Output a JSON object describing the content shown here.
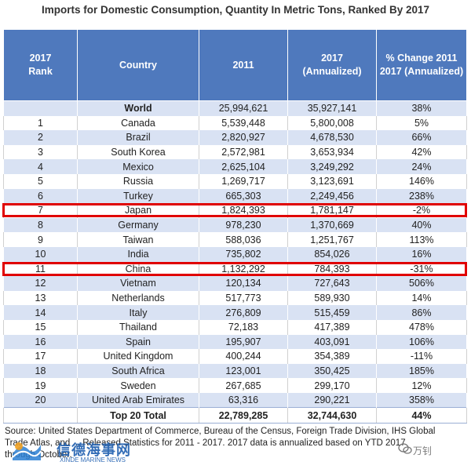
{
  "title": "Imports for Domestic Consumption, Quantity In Metric Tons, Ranked By 2017",
  "headers": {
    "rank": "2017\nRank",
    "country": "Country",
    "y2011": "2011",
    "y2017": "2017\n(Annualized)",
    "change": "% Change 2011\n2017 (Annualized)"
  },
  "world": {
    "rank": "",
    "country": "World",
    "y2011": "25,994,621",
    "y2017": "35,927,141",
    "change": "38%"
  },
  "rows": [
    {
      "rank": "1",
      "country": "Canada",
      "y2011": "5,539,448",
      "y2017": "5,800,008",
      "change": "5%"
    },
    {
      "rank": "2",
      "country": "Brazil",
      "y2011": "2,820,927",
      "y2017": "4,678,530",
      "change": "66%"
    },
    {
      "rank": "3",
      "country": "South Korea",
      "y2011": "2,572,981",
      "y2017": "3,653,934",
      "change": "42%"
    },
    {
      "rank": "4",
      "country": "Mexico",
      "y2011": "2,625,104",
      "y2017": "3,249,292",
      "change": "24%"
    },
    {
      "rank": "5",
      "country": "Russia",
      "y2011": "1,269,717",
      "y2017": "3,123,691",
      "change": "146%"
    },
    {
      "rank": "6",
      "country": "Turkey",
      "y2011": "665,303",
      "y2017": "2,249,456",
      "change": "238%"
    },
    {
      "rank": "7",
      "country": "Japan",
      "y2011": "1,824,393",
      "y2017": "1,781,147",
      "change": "-2%"
    },
    {
      "rank": "8",
      "country": "Germany",
      "y2011": "978,230",
      "y2017": "1,370,669",
      "change": "40%"
    },
    {
      "rank": "9",
      "country": "Taiwan",
      "y2011": "588,036",
      "y2017": "1,251,767",
      "change": "113%"
    },
    {
      "rank": "10",
      "country": "India",
      "y2011": "735,802",
      "y2017": "854,026",
      "change": "16%"
    },
    {
      "rank": "11",
      "country": "China",
      "y2011": "1,132,292",
      "y2017": "784,393",
      "change": "-31%"
    },
    {
      "rank": "12",
      "country": "Vietnam",
      "y2011": "120,134",
      "y2017": "727,643",
      "change": "506%"
    },
    {
      "rank": "13",
      "country": "Netherlands",
      "y2011": "517,773",
      "y2017": "589,930",
      "change": "14%"
    },
    {
      "rank": "14",
      "country": "Italy",
      "y2011": "276,809",
      "y2017": "515,459",
      "change": "86%"
    },
    {
      "rank": "15",
      "country": "Thailand",
      "y2011": "72,183",
      "y2017": "417,389",
      "change": "478%"
    },
    {
      "rank": "16",
      "country": "Spain",
      "y2011": "195,907",
      "y2017": "403,091",
      "change": "106%"
    },
    {
      "rank": "17",
      "country": "United Kingdom",
      "y2011": "400,244",
      "y2017": "354,389",
      "change": "-11%"
    },
    {
      "rank": "18",
      "country": "South Africa",
      "y2011": "123,001",
      "y2017": "350,425",
      "change": "185%"
    },
    {
      "rank": "19",
      "country": "Sweden",
      "y2011": "267,685",
      "y2017": "299,170",
      "change": "12%"
    },
    {
      "rank": "20",
      "country": "United Arab Emirates",
      "y2011": "63,316",
      "y2017": "290,221",
      "change": "358%"
    }
  ],
  "total": {
    "rank": "",
    "country": "Top 20 Total",
    "y2011": "22,789,285",
    "y2017": "32,744,630",
    "change": "44%"
  },
  "highlighted_ranks": [
    "7",
    "11"
  ],
  "highlight_color": "#e00000",
  "header_color": "#4f79bd",
  "stripe_color": "#d9e2f3",
  "source": {
    "line1": "Source: United States Department of Commerce, Bureau of the Census, Foreign Trade Division, IHS Global",
    "line2": "Trade Atlas, and ... Released Statistics for 2011 - 2017.  2017 data is annualized based on YTD 2017",
    "line3": "through October."
  },
  "watermark": {
    "left_text": "信德海事网",
    "left_sub": "XINDE MARINE NEWS",
    "right_text": "万钊",
    "logo_icon": "xinde-logo-icon",
    "right_icon": "wechat-icon"
  }
}
